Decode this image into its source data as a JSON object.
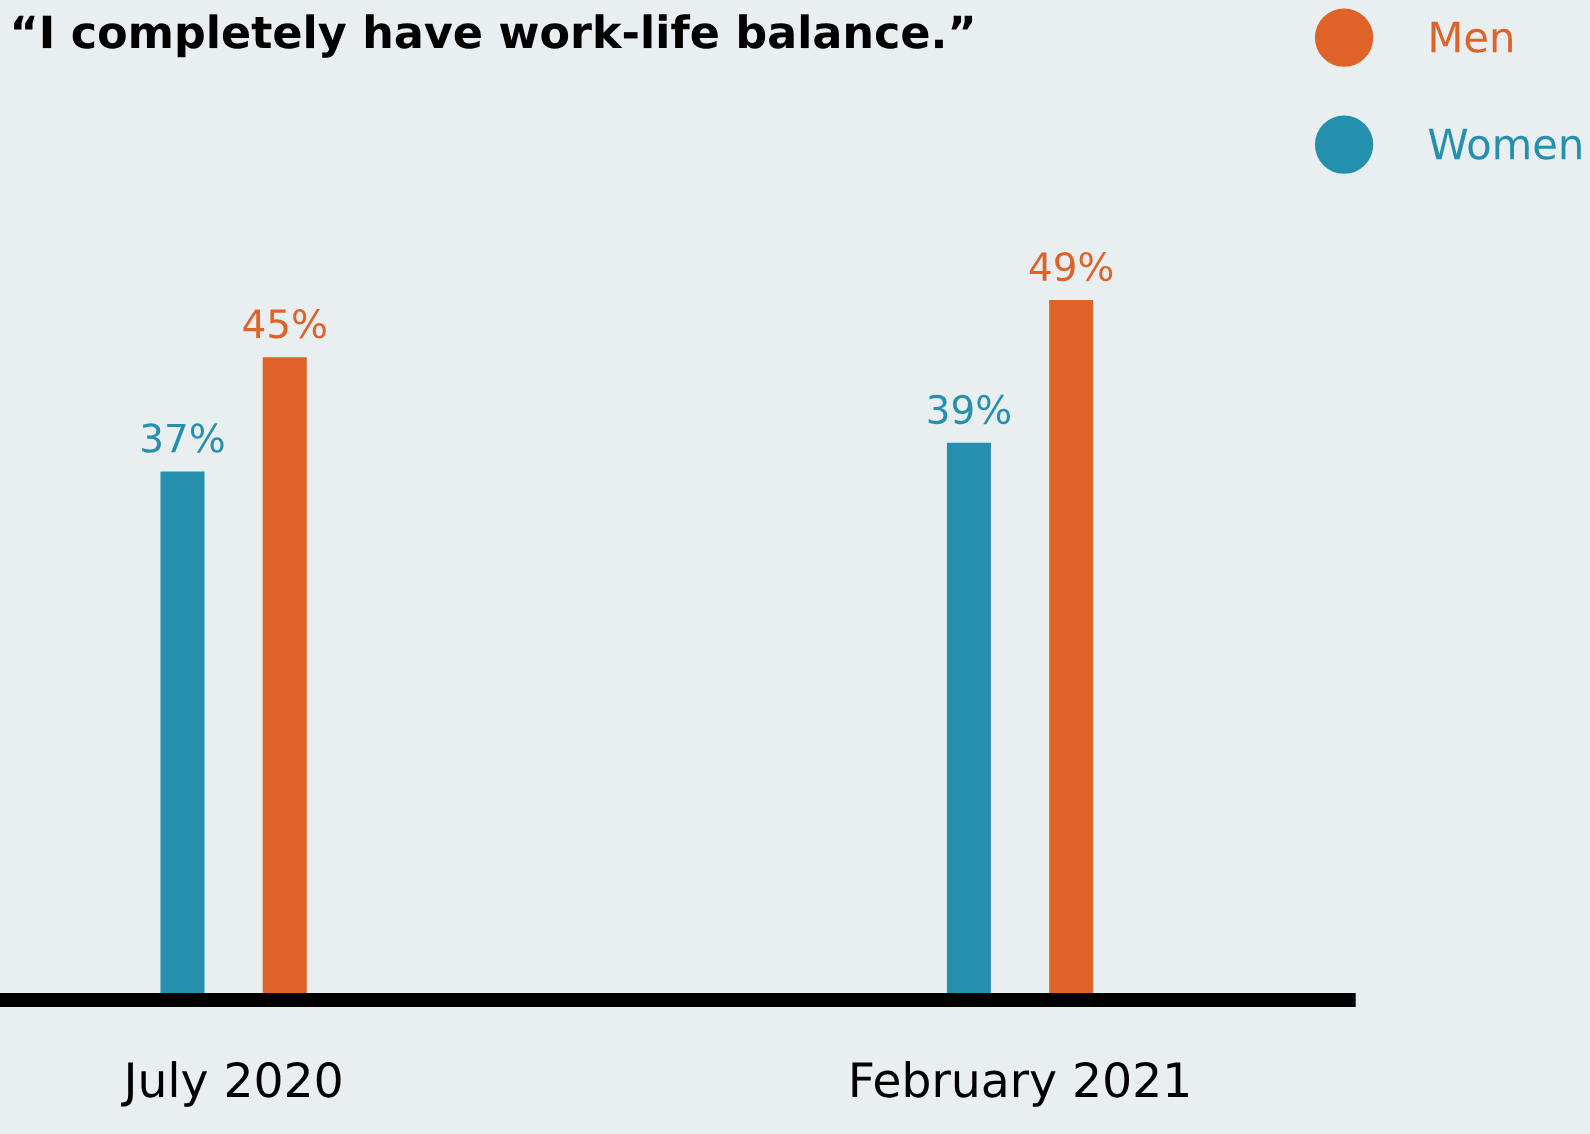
{
  "chart_data": {
    "type": "bar",
    "title": "“I completely have work-life balance.”",
    "categories": [
      "July 2020",
      "February 2021"
    ],
    "series": [
      {
        "name": "Women",
        "color": "#2590ad",
        "values": [
          37,
          39
        ],
        "value_labels": [
          "37%",
          "39%"
        ]
      },
      {
        "name": "Men",
        "color": "#df6228",
        "values": [
          45,
          49
        ],
        "value_labels": [
          "45%",
          "49%"
        ]
      }
    ],
    "legend": "top right",
    "grid": false
  }
}
